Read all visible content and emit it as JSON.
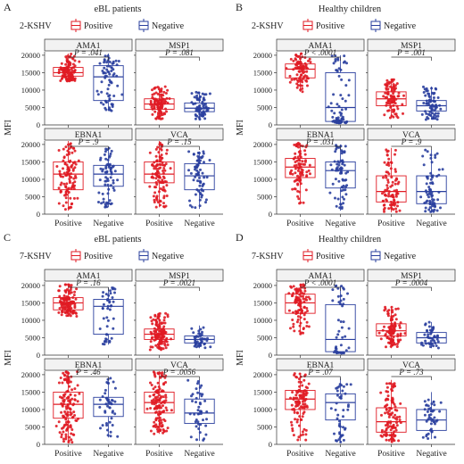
{
  "colors": {
    "positive": "#e01b24",
    "negative": "#2a3f9e",
    "bracket": "#333333"
  },
  "chart_data": [
    {
      "type": "boxplot",
      "label": "A",
      "title": "eBL patients",
      "legend_title": "2-KSHV",
      "legend": [
        "Positive",
        "Negative"
      ],
      "ylabel": "MFI",
      "categories": [
        "Positive",
        "Negative"
      ],
      "panels": [
        {
          "name": "AMA1",
          "ylim": [
            0,
            21000
          ],
          "yticks": [
            0,
            5000,
            10000,
            15000,
            20000
          ],
          "pvalue": "P = .041",
          "box": {
            "Positive": [
              12500,
              14000,
              15000,
              16500,
              20500
            ],
            "Negative": [
              4000,
              7000,
              13800,
              17000,
              20500
            ]
          },
          "n": {
            "Positive": 110,
            "Negative": 70
          }
        },
        {
          "name": "MSP1",
          "ylim": [
            0,
            21000
          ],
          "yticks": [
            0,
            5000,
            10000,
            15000,
            20000
          ],
          "pvalue": "P = .081",
          "box": {
            "Positive": [
              1500,
              4500,
              6000,
              7500,
              11000
            ],
            "Negative": [
              1500,
              3800,
              4800,
              6300,
              9500
            ]
          },
          "n": {
            "Positive": 110,
            "Negative": 70
          }
        },
        {
          "name": "EBNA1",
          "ylim": [
            0,
            21000
          ],
          "yticks": [
            0,
            5000,
            10000,
            15000,
            20000
          ],
          "pvalue": "P = .9",
          "box": {
            "Positive": [
              1000,
              7000,
              11500,
              15000,
              21000
            ],
            "Negative": [
              2000,
              8000,
              11500,
              14000,
              19000
            ]
          },
          "n": {
            "Positive": 110,
            "Negative": 70
          }
        },
        {
          "name": "VCA",
          "ylim": [
            0,
            21000
          ],
          "yticks": [
            0,
            5000,
            10000,
            15000,
            20000
          ],
          "pvalue": "P = .15",
          "box": {
            "Positive": [
              2000,
              9000,
              11500,
              15000,
              21000
            ],
            "Negative": [
              1500,
              7000,
              11000,
              14500,
              18000
            ]
          },
          "n": {
            "Positive": 110,
            "Negative": 70
          }
        }
      ]
    },
    {
      "type": "boxplot",
      "label": "B",
      "title": "Healthy children",
      "legend_title": "2-KSHV",
      "legend": [
        "Positive",
        "Negative"
      ],
      "ylabel": "MFI",
      "categories": [
        "Positive",
        "Negative"
      ],
      "panels": [
        {
          "name": "AMA1",
          "ylim": [
            0,
            21000
          ],
          "yticks": [
            0,
            5000,
            10000,
            15000,
            20000
          ],
          "pvalue": "P < .0001",
          "box": {
            "Positive": [
              9500,
              13500,
              16000,
              17500,
              20500
            ],
            "Negative": [
              500,
              1000,
              5000,
              15000,
              20000
            ]
          },
          "n": {
            "Positive": 90,
            "Negative": 70
          }
        },
        {
          "name": "MSP1",
          "ylim": [
            0,
            21000
          ],
          "yticks": [
            0,
            5000,
            10000,
            15000,
            20000
          ],
          "pvalue": "P = .001",
          "box": {
            "Positive": [
              2000,
              5500,
              7500,
              9500,
              13000
            ],
            "Negative": [
              1500,
              4000,
              5500,
              7000,
              11000
            ]
          },
          "n": {
            "Positive": 90,
            "Negative": 70
          }
        },
        {
          "name": "EBNA1",
          "ylim": [
            0,
            21000
          ],
          "yticks": [
            0,
            5000,
            10000,
            15000,
            20000
          ],
          "pvalue": "P = .031",
          "box": {
            "Positive": [
              3000,
              10500,
              13500,
              16000,
              20500
            ],
            "Negative": [
              1000,
              7500,
              12500,
              15000,
              20000
            ]
          },
          "n": {
            "Positive": 90,
            "Negative": 70
          }
        },
        {
          "name": "VCA",
          "ylim": [
            0,
            21000
          ],
          "yticks": [
            0,
            5000,
            10000,
            15000,
            20000
          ],
          "pvalue": "P = .9",
          "box": {
            "Positive": [
              500,
              3500,
              6500,
              11000,
              19000
            ],
            "Negative": [
              500,
              3000,
              6500,
              11000,
              18500
            ]
          },
          "n": {
            "Positive": 90,
            "Negative": 70
          }
        }
      ]
    },
    {
      "type": "boxplot",
      "label": "C",
      "title": "eBL patients",
      "legend_title": "7-KSHV",
      "legend": [
        "Positive",
        "Negative"
      ],
      "ylabel": "MFI",
      "categories": [
        "Positive",
        "Negative"
      ],
      "panels": [
        {
          "name": "AMA1",
          "ylim": [
            0,
            21000
          ],
          "yticks": [
            0,
            5000,
            10000,
            15000,
            20000
          ],
          "pvalue": "P = .16",
          "box": {
            "Positive": [
              11000,
              13000,
              15000,
              16500,
              20500
            ],
            "Negative": [
              3000,
              6000,
              14000,
              16000,
              19500
            ]
          },
          "n": {
            "Positive": 130,
            "Negative": 45
          }
        },
        {
          "name": "MSP1",
          "ylim": [
            0,
            21000
          ],
          "yticks": [
            0,
            5000,
            10000,
            15000,
            20000
          ],
          "pvalue": "P = .0021",
          "box": {
            "Positive": [
              1500,
              4500,
              6000,
              7500,
              12000
            ],
            "Negative": [
              2000,
              3500,
              4500,
              5500,
              8500
            ]
          },
          "n": {
            "Positive": 130,
            "Negative": 45
          }
        },
        {
          "name": "EBNA1",
          "ylim": [
            0,
            21000
          ],
          "yticks": [
            0,
            5000,
            10000,
            15000,
            20000
          ],
          "pvalue": "P = .46",
          "box": {
            "Positive": [
              500,
              7500,
              11500,
              15000,
              21000
            ],
            "Negative": [
              2000,
              8000,
              11500,
              13500,
              19000
            ]
          },
          "n": {
            "Positive": 130,
            "Negative": 45
          }
        },
        {
          "name": "VCA",
          "ylim": [
            0,
            21000
          ],
          "yticks": [
            0,
            5000,
            10000,
            15000,
            20000
          ],
          "pvalue": "P = .0056",
          "box": {
            "Positive": [
              3000,
              9000,
              12000,
              15000,
              21000
            ],
            "Negative": [
              1000,
              6000,
              9000,
              13000,
              18500
            ]
          },
          "n": {
            "Positive": 130,
            "Negative": 45
          }
        }
      ]
    },
    {
      "type": "boxplot",
      "label": "D",
      "title": "Healthy children",
      "legend_title": "7-KSHV",
      "legend": [
        "Positive",
        "Negative"
      ],
      "ylabel": "MFI",
      "categories": [
        "Positive",
        "Negative"
      ],
      "panels": [
        {
          "name": "AMA1",
          "ylim": [
            0,
            21000
          ],
          "yticks": [
            0,
            5000,
            10000,
            15000,
            20000
          ],
          "pvalue": "P < .0001",
          "box": {
            "Positive": [
              6000,
              12000,
              15000,
              17500,
              20500
            ],
            "Negative": [
              500,
              1000,
              4500,
              14500,
              20000
            ]
          },
          "n": {
            "Positive": 110,
            "Negative": 45
          }
        },
        {
          "name": "MSP1",
          "ylim": [
            0,
            21000
          ],
          "yticks": [
            0,
            5000,
            10000,
            15000,
            20000
          ],
          "pvalue": "P = .0004",
          "box": {
            "Positive": [
              2000,
              5500,
              7000,
              9000,
              14000
            ],
            "Negative": [
              2000,
              3500,
              5000,
              6500,
              9500
            ]
          },
          "n": {
            "Positive": 110,
            "Negative": 45
          }
        },
        {
          "name": "EBNA1",
          "ylim": [
            0,
            21000
          ],
          "yticks": [
            0,
            5000,
            10000,
            15000,
            20000
          ],
          "pvalue": "P = .07",
          "box": {
            "Positive": [
              1000,
              10000,
              13000,
              15500,
              20500
            ],
            "Negative": [
              500,
              7000,
              12000,
              14500,
              19000
            ]
          },
          "n": {
            "Positive": 110,
            "Negative": 45
          }
        },
        {
          "name": "VCA",
          "ylim": [
            0,
            21000
          ],
          "yticks": [
            0,
            5000,
            10000,
            15000,
            20000
          ],
          "pvalue": "P = .73",
          "box": {
            "Positive": [
              500,
              3500,
              6500,
              10500,
              18500
            ],
            "Negative": [
              1500,
              4000,
              7000,
              10000,
              15000
            ]
          },
          "n": {
            "Positive": 110,
            "Negative": 45
          }
        }
      ]
    }
  ]
}
